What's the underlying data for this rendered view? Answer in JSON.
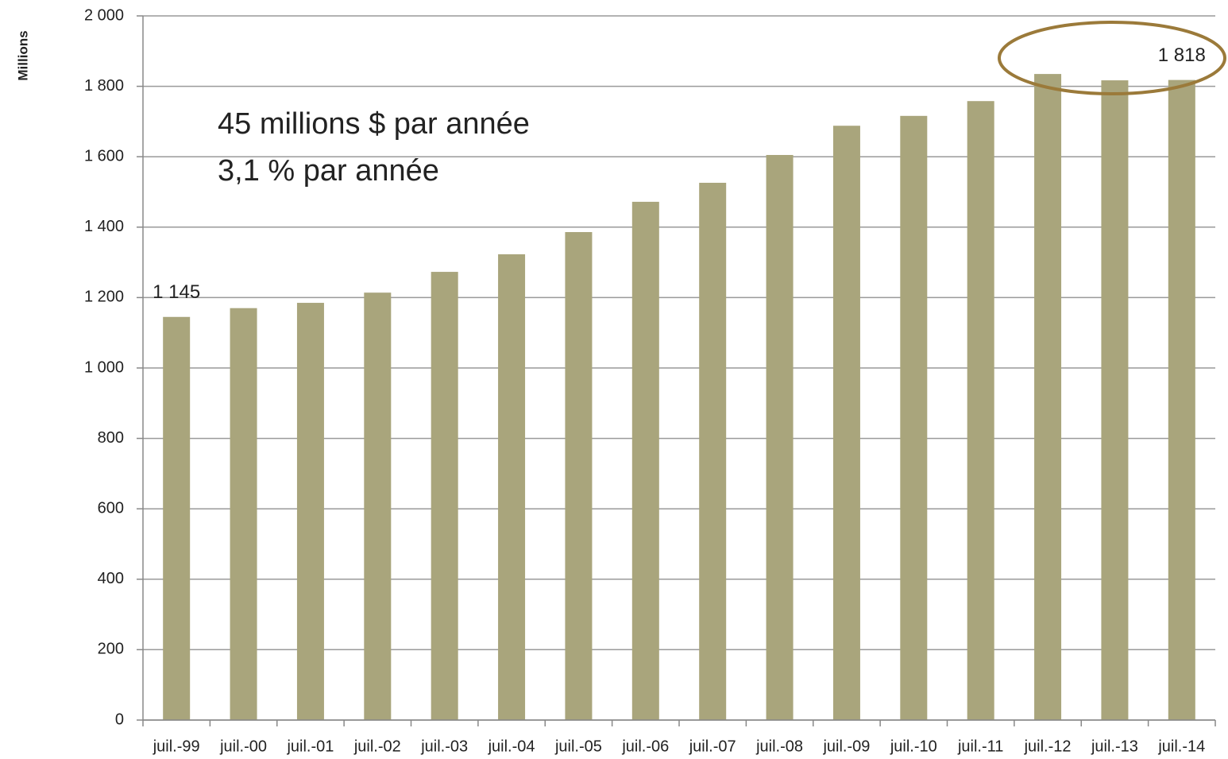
{
  "chart_data": {
    "type": "bar",
    "y_label": "Millions",
    "annotations": [
      "45 millions $ par année",
      "3,1 % par année"
    ],
    "categories": [
      "juil.-99",
      "juil.-00",
      "juil.-01",
      "juil.-02",
      "juil.-03",
      "juil.-04",
      "juil.-05",
      "juil.-06",
      "juil.-07",
      "juil.-08",
      "juil.-09",
      "juil.-10",
      "juil.-11",
      "juil.-12",
      "juil.-13",
      "juil.-14"
    ],
    "values": [
      1145,
      1170,
      1185,
      1214,
      1273,
      1323,
      1386,
      1472,
      1526,
      1605,
      1688,
      1716,
      1758,
      1835,
      1817,
      1818
    ],
    "value_labels": [
      "1 145",
      null,
      null,
      null,
      null,
      null,
      null,
      null,
      null,
      null,
      null,
      null,
      null,
      null,
      null,
      "1 818"
    ],
    "color": "#a9a57c",
    "ylim": [
      0,
      2000
    ],
    "yticks": [
      0,
      200,
      400,
      600,
      800,
      {
        "value": 1000,
        "label": "1 000"
      },
      {
        "value": 1200,
        "label": "1 200"
      },
      {
        "value": 1400,
        "label": "1 400"
      },
      {
        "value": 1600,
        "label": "1 600"
      },
      {
        "value": 1800,
        "label": "1 800"
      },
      {
        "value": 2000,
        "label": "2 000"
      }
    ],
    "grid": true
  }
}
